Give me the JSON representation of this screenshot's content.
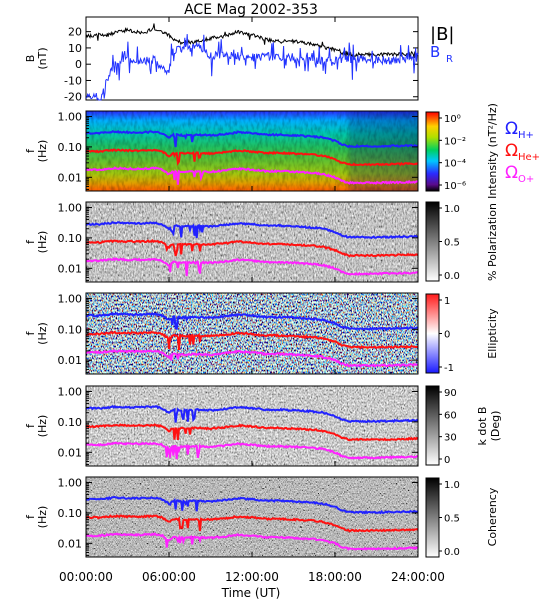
{
  "title": "ACE Mag 2002-353",
  "x_axis": {
    "label": "Time (UT)",
    "ticks": [
      "00:00:00",
      "06:00:00",
      "12:00:00",
      "18:00:00",
      "24:00:00"
    ]
  },
  "curve_labels": {
    "h": {
      "base": "Ω",
      "sub": "H+",
      "color": "#2222ff"
    },
    "he": {
      "base": "Ω",
      "sub": "He+",
      "color": "#ff1111"
    },
    "o": {
      "base": "Ω",
      "sub": "O+",
      "color": "#ff22ff"
    }
  },
  "legend_b": {
    "total": "|B|",
    "radial": "B",
    "radial_sub": "R",
    "total_color": "#000000",
    "radial_color": "#2233ff"
  },
  "chart_data": [
    {
      "type": "line",
      "id": "b-field",
      "title": "ACE Mag 2002-353",
      "ylabel": "B",
      "yunit": "(nT)",
      "ylim": [
        -22,
        29
      ],
      "yticks": [
        "20",
        "10",
        "0",
        "-10",
        "-20"
      ],
      "x_hours": [
        0,
        1,
        2,
        3,
        4,
        5,
        5.5,
        6,
        6.3,
        7,
        8,
        9,
        10,
        11,
        12,
        13,
        14,
        15,
        16,
        17,
        18,
        18.5,
        19,
        20,
        21,
        22,
        23,
        24
      ],
      "series": [
        {
          "name": "|B|",
          "values": [
            17,
            18,
            19,
            21,
            19,
            22,
            20,
            18,
            15,
            13,
            14,
            16,
            17,
            20,
            18,
            15,
            14,
            14,
            13,
            11,
            9,
            7,
            6,
            6,
            6,
            6,
            6,
            7
          ]
        },
        {
          "name": "B_R",
          "values": [
            -18,
            -20,
            0,
            4,
            2,
            3,
            -4,
            -3,
            8,
            9,
            11,
            5,
            6,
            5,
            4,
            5,
            4,
            4,
            3,
            2,
            2,
            3,
            3,
            3,
            3,
            2,
            3,
            4
          ]
        }
      ]
    },
    {
      "type": "heatmap",
      "id": "intensity",
      "ylabel": "f",
      "yunit": "(Hz)",
      "yticks": [
        "1.00",
        "0.10",
        "0.01"
      ],
      "colorbar": {
        "label": "Intensity (nT²/Hz)",
        "ticks": [
          "10⁰",
          "10⁻²",
          "10⁻⁴",
          "10⁻⁶"
        ],
        "scale": "rainbow"
      }
    },
    {
      "type": "heatmap",
      "id": "polarization",
      "ylabel": "f",
      "yunit": "(Hz)",
      "yticks": [
        "1.00",
        "0.10",
        "0.01"
      ],
      "colorbar": {
        "label": "% Polarization",
        "ticks": [
          "1.0",
          "0.5",
          "0.0"
        ],
        "scale": "gray-inverted"
      }
    },
    {
      "type": "heatmap",
      "id": "ellipticity",
      "ylabel": "f",
      "yunit": "(Hz)",
      "yticks": [
        "1.00",
        "0.10",
        "0.01"
      ],
      "colorbar": {
        "label": "Ellipticity",
        "ticks": [
          "1",
          "0",
          "-1"
        ],
        "scale": "blue-white-red"
      }
    },
    {
      "type": "heatmap",
      "id": "k-dot-b",
      "ylabel": "f",
      "yunit": "(Hz)",
      "yticks": [
        "1.00",
        "0.10",
        "0.01"
      ],
      "colorbar": {
        "label": "k dot B",
        "label2": "(Deg)",
        "ticks": [
          "90",
          "60",
          "30",
          "0"
        ],
        "scale": "gray-inverted"
      }
    },
    {
      "type": "heatmap",
      "id": "coherency",
      "ylabel": "f",
      "yunit": "(Hz)",
      "yticks": [
        "1.00",
        "0.10",
        "0.01"
      ],
      "colorbar": {
        "label": "Coherency",
        "ticks": [
          "1.0",
          "0.5",
          "0.0"
        ],
        "scale": "gray-inverted"
      }
    }
  ]
}
